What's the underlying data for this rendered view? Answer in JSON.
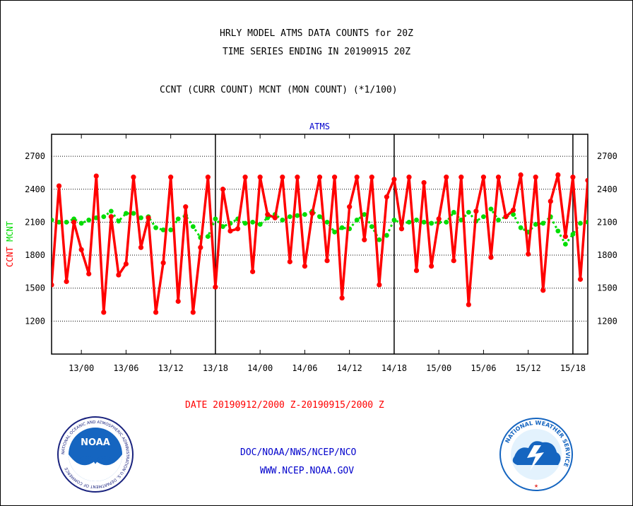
{
  "titles": {
    "line1": "HRLY MODEL ATMS DATA COUNTS for 20Z",
    "line2": "TIME SERIES ENDING IN 20190915 20Z",
    "line3": "CCNT (CURR COUNT) MCNT (MON COUNT) (*1/100)"
  },
  "footer": {
    "date_range": "DATE 20190912/2000 Z-20190915/2000 Z",
    "org": "DOC/NOAA/NWS/NCEP/NCO",
    "url": "WWW.NCEP.NOAA.GOV"
  },
  "logos": {
    "noaa_label": "NOAA",
    "noaa_ring": "NATIONAL OCEANIC AND ATMOSPHERIC ADMINISTRATION  U.S. DEPARTMENT OF COMMERCE",
    "nws_ring": "NATIONAL WEATHER SERVICE"
  },
  "colors": {
    "ccnt": "#ff0000",
    "mcnt": "#00dd00",
    "plot_title": "#0000cc",
    "footer_text": "#0000cc",
    "date_text": "#ff0000"
  },
  "chart_data": {
    "type": "line",
    "title": "ATMS",
    "ylabel_parts": [
      {
        "text": "CCNT",
        "color": "#ff0000"
      },
      {
        "text": "MCNT",
        "color": "#00dd00"
      }
    ],
    "xlim": [
      0,
      72
    ],
    "ylim": [
      900,
      2900
    ],
    "yticks": [
      1200,
      1500,
      1800,
      2100,
      2400,
      2700
    ],
    "xtick_labels": [
      {
        "x": 4,
        "label": "13/00"
      },
      {
        "x": 10,
        "label": "13/06"
      },
      {
        "x": 16,
        "label": "13/12"
      },
      {
        "x": 22,
        "label": "13/18"
      },
      {
        "x": 28,
        "label": "14/00"
      },
      {
        "x": 34,
        "label": "14/06"
      },
      {
        "x": 40,
        "label": "14/12"
      },
      {
        "x": 46,
        "label": "14/18"
      },
      {
        "x": 52,
        "label": "15/00"
      },
      {
        "x": 58,
        "label": "15/06"
      },
      {
        "x": 64,
        "label": "15/12"
      },
      {
        "x": 70,
        "label": "15/18"
      }
    ],
    "day_separators": [
      22,
      46,
      70
    ],
    "grid": "horizontal dotted",
    "series": [
      {
        "name": "CCNT",
        "color": "#ff0000",
        "values": [
          1530,
          2430,
          1560,
          2100,
          1850,
          1630,
          2520,
          1280,
          2150,
          1620,
          1720,
          2510,
          1870,
          2140,
          1280,
          1730,
          2510,
          1380,
          2240,
          1280,
          1870,
          2510,
          1510,
          2400,
          2020,
          2040,
          2510,
          1650,
          2510,
          2170,
          2140,
          2510,
          1740,
          2510,
          1700,
          2180,
          2510,
          1750,
          2510,
          1410,
          2240,
          2510,
          1940,
          2510,
          1530,
          2330,
          2490,
          2040,
          2510,
          1660,
          2460,
          1700,
          2130,
          2510,
          1750,
          2510,
          1350,
          2200,
          2510,
          1780,
          2510,
          2150,
          2210,
          2530,
          1810,
          2510,
          1480,
          2290,
          2530,
          1970,
          2510,
          1580,
          2480
        ]
      },
      {
        "name": "MCNT",
        "color": "#00dd00",
        "values": [
          2120,
          2100,
          2100,
          2130,
          2090,
          2120,
          2140,
          2150,
          2200,
          2110,
          2180,
          2180,
          2140,
          2150,
          2050,
          2030,
          2030,
          2130,
          2160,
          2060,
          1960,
          1970,
          2130,
          2060,
          2090,
          2130,
          2090,
          2100,
          2080,
          2140,
          2170,
          2120,
          2150,
          2160,
          2170,
          2200,
          2150,
          2100,
          2010,
          2050,
          2040,
          2120,
          2170,
          2060,
          1940,
          1980,
          2120,
          2090,
          2100,
          2120,
          2100,
          2090,
          2100,
          2100,
          2190,
          2120,
          2190,
          2110,
          2150,
          2220,
          2120,
          2150,
          2170,
          2050,
          2010,
          2080,
          2090,
          2150,
          2020,
          1900,
          1990,
          2090,
          2100
        ]
      }
    ]
  }
}
